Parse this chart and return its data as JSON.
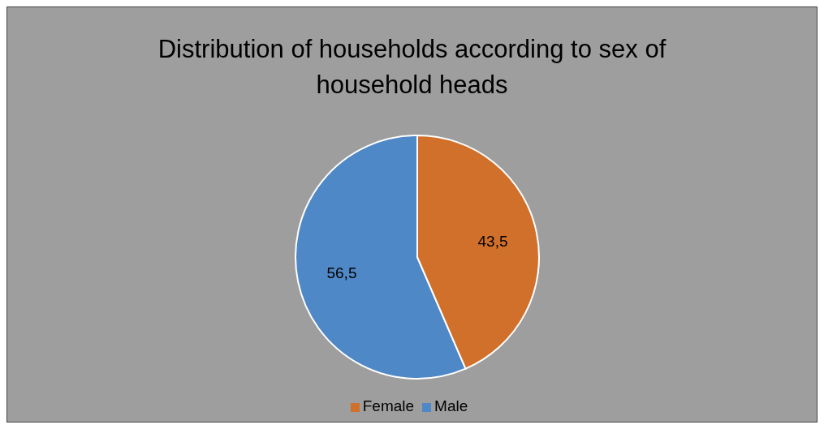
{
  "chart_data": {
    "type": "pie",
    "title": "Distribution of households according to sex of household heads",
    "categories": [
      "Male",
      "Female"
    ],
    "values": [
      56.5,
      43.5
    ],
    "colors": [
      "#4f88c6",
      "#d0702a"
    ],
    "value_labels": [
      "56,5",
      "43,5"
    ],
    "legend": "bottom"
  }
}
